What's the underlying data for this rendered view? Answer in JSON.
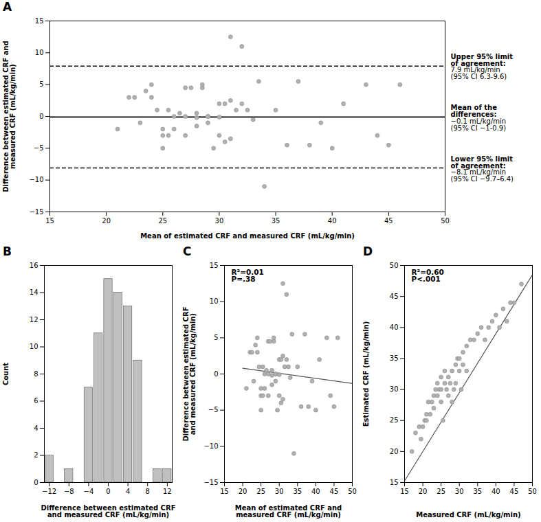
{
  "chart_data": [
    {
      "type": "scatter",
      "title": "A",
      "x": [
        21,
        22,
        22.5,
        23,
        23.5,
        24,
        24,
        24.5,
        25,
        25,
        25,
        25.5,
        25.5,
        26,
        26,
        26.5,
        27,
        27,
        27,
        27.5,
        28,
        28,
        28,
        28.5,
        28.5,
        29,
        29,
        29,
        29.5,
        30,
        30,
        30,
        30.5,
        30.5,
        31,
        31,
        31,
        31.5,
        32,
        32,
        32.5,
        33,
        33.5,
        34,
        35,
        36,
        37,
        38,
        39,
        40,
        41,
        43,
        44,
        45,
        46
      ],
      "values": [
        -2,
        3,
        3,
        -1,
        4,
        5,
        3,
        1,
        -5,
        -2,
        -3,
        1,
        -3,
        0,
        -2,
        0.5,
        0,
        -3,
        4.5,
        4.5,
        0.5,
        -0.2,
        -1.5,
        4.5,
        5,
        0,
        0,
        -1,
        -5,
        -0.1,
        2,
        -3,
        2,
        -4,
        12.5,
        2.5,
        -3.5,
        1,
        11,
        2,
        1,
        -0.5,
        5.5,
        -11,
        1,
        -4.5,
        5.5,
        -4.5,
        -1,
        -5,
        2,
        5,
        -3,
        -4.5,
        5
      ],
      "color": "#b0b0b0",
      "xlabel": "Mean of estimated CRF and measured CRF (mL/kg/min)",
      "ylabel": "Difference between estimated CRF and\nmeasured CRF (mL/kg/min)",
      "xlim": [
        15,
        50
      ],
      "ylim": [
        -15,
        15
      ],
      "xticks": [
        15,
        20,
        25,
        30,
        35,
        40,
        45,
        50
      ],
      "yticks": [
        -15,
        -10,
        -5,
        0,
        5,
        10,
        15
      ],
      "reference_lines": [
        {
          "value": -0.1,
          "line_style": "solid",
          "color": "#000000",
          "annotation": [
            "Mean of the",
            "differences:",
            "−0.1 mL/kg/min",
            "(95% CI −1-0.9)"
          ]
        },
        {
          "value": 7.9,
          "line_style": "dashed",
          "color": "#000000",
          "annotation": [
            "Upper 95% limit",
            "of agreement:",
            "7.9 mL/kg/min",
            "(95% CI 6.3-9.6)"
          ]
        },
        {
          "value": -8.1,
          "line_style": "dashed",
          "color": "#000000",
          "annotation": [
            "Lower 95% limit",
            "of agreement:",
            "−8.1 mL/kg/min",
            "(95% CI −9.7–6.4)"
          ]
        }
      ]
    },
    {
      "type": "histogram",
      "title": "B",
      "bins": [
        -13,
        -11,
        -9,
        -7,
        -5,
        -3,
        -1,
        1,
        3,
        5,
        7,
        9,
        11,
        13
      ],
      "values": [
        2,
        0,
        1,
        0,
        7,
        11,
        15,
        14,
        13,
        9,
        0,
        1,
        1
      ],
      "color": "#c0c0c0",
      "xlabel": "Difference between estimated CRF\nand measured CRF (mL/kg/min)",
      "ylabel": "Count",
      "xlim": [
        -13,
        13
      ],
      "ylim": [
        0,
        16
      ],
      "xticks": [
        -12,
        -8,
        -4,
        0,
        4,
        8,
        12
      ],
      "yticks": [
        0,
        2,
        4,
        6,
        8,
        10,
        12,
        14,
        16
      ]
    },
    {
      "type": "scatter",
      "title": "C",
      "x": [
        21,
        22,
        22.5,
        23,
        23.5,
        24,
        24,
        24.5,
        25,
        25,
        25,
        25.5,
        25.5,
        26,
        26,
        26.5,
        27,
        27,
        27,
        27.5,
        28,
        28,
        28,
        28.5,
        28.5,
        29,
        29,
        29,
        29.5,
        30,
        30,
        30,
        30.5,
        30.5,
        31,
        31,
        31,
        31.5,
        32,
        32,
        32.5,
        33,
        33.5,
        34,
        35,
        36,
        37,
        38,
        39,
        40,
        41,
        43,
        44,
        45,
        46
      ],
      "values": [
        -2,
        3,
        3,
        -1,
        4,
        5,
        3,
        1,
        -5,
        -2,
        -3,
        1,
        -3,
        0,
        -2,
        0.5,
        0,
        -3,
        4.5,
        4.5,
        0.5,
        -0.2,
        -1.5,
        4.5,
        5,
        0,
        0,
        -1,
        -5,
        -0.1,
        2,
        -3,
        2,
        -4,
        12.5,
        2.5,
        -3.5,
        1,
        11,
        2,
        1,
        -0.5,
        5.5,
        -11,
        1,
        -4.5,
        5.5,
        -4.5,
        -1,
        -5,
        2,
        5,
        -3,
        -4.5,
        5
      ],
      "color": "#b0b0b0",
      "trend": {
        "x": [
          20,
          50
        ],
        "values": [
          0.8,
          -1.3
        ],
        "color": "#555555"
      },
      "annotations": [
        "R²=0.01",
        "P=.38"
      ],
      "xlabel": "Mean of estimated CRF and\nmeasured CRF (mL/kg/min)",
      "ylabel": "Difference between estimated CRF\nand measured CRF (mL/kg/min)",
      "xlim": [
        15,
        50
      ],
      "ylim": [
        -15,
        15
      ],
      "xticks": [
        15,
        20,
        25,
        30,
        35,
        40,
        45,
        50
      ],
      "yticks": [
        -15,
        -10,
        -5,
        0,
        5,
        10,
        15
      ]
    },
    {
      "type": "scatter",
      "title": "D",
      "x": [
        17,
        18,
        19,
        19.5,
        20,
        20.5,
        21,
        21,
        21.5,
        22,
        22.5,
        23,
        23,
        23.5,
        24,
        24,
        24.5,
        25,
        25,
        25,
        25.5,
        26,
        26,
        26.5,
        27,
        27,
        27.5,
        28,
        28,
        28.5,
        29,
        29,
        29.5,
        30,
        30,
        30.5,
        31,
        31,
        32,
        32,
        33,
        34,
        35,
        36,
        37,
        38,
        39,
        40,
        41,
        42,
        43,
        44,
        45,
        47
      ],
      "values": [
        20,
        23,
        24,
        22,
        24,
        25,
        26,
        25,
        28,
        26,
        28,
        29,
        27,
        30,
        29,
        31,
        30,
        28,
        30,
        32,
        25,
        31,
        33,
        30,
        32,
        29,
        31,
        33,
        28,
        30,
        34,
        31,
        35,
        33,
        35,
        30,
        36,
        34,
        37,
        33,
        38,
        38,
        39,
        40,
        38,
        40,
        41,
        42,
        40,
        43,
        41,
        44,
        44,
        47
      ],
      "color": "#b0b0b0",
      "trend": {
        "x": [
          15,
          50
        ],
        "values": [
          15.25,
          48.5
        ],
        "color": "#555555"
      },
      "annotations": [
        "R²=0.60",
        "P<.001"
      ],
      "xlabel": "Measured CRF (mL/kg/min)",
      "ylabel": "Estimated CRF (mL/kg/min)",
      "xlim": [
        15,
        50
      ],
      "ylim": [
        15,
        50
      ],
      "xticks": [
        15,
        20,
        25,
        30,
        35,
        40,
        45,
        50
      ],
      "yticks": [
        15,
        20,
        25,
        30,
        35,
        40,
        45,
        50
      ]
    }
  ]
}
